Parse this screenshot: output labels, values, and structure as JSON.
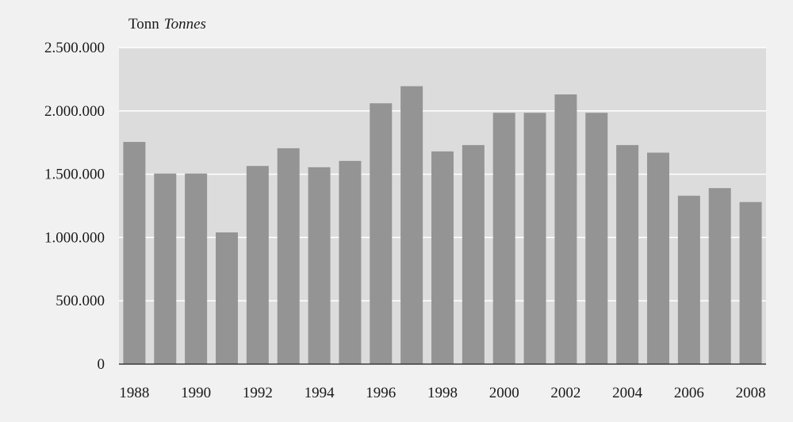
{
  "chart_data": {
    "type": "bar",
    "unit_label": "Tonn",
    "unit_label_en": "Tonnes",
    "categories": [
      "1988",
      "1989",
      "1990",
      "1991",
      "1992",
      "1993",
      "1994",
      "1995",
      "1996",
      "1997",
      "1998",
      "1999",
      "2000",
      "2001",
      "2002",
      "2003",
      "2004",
      "2005",
      "2006",
      "2007",
      "2008"
    ],
    "values": [
      1755000,
      1505000,
      1505000,
      1040000,
      1565000,
      1705000,
      1555000,
      1605000,
      2060000,
      2195000,
      1680000,
      1730000,
      1985000,
      1985000,
      2130000,
      1985000,
      1730000,
      1670000,
      1330000,
      1390000,
      1280000
    ],
    "x_tick_labels": [
      "1988",
      "1990",
      "1992",
      "1994",
      "1996",
      "1998",
      "2000",
      "2002",
      "2004",
      "2006",
      "2008"
    ],
    "y_ticks": [
      {
        "value": 0,
        "label": "0"
      },
      {
        "value": 500000,
        "label": "500.000"
      },
      {
        "value": 1000000,
        "label": "1.000.000"
      },
      {
        "value": 1500000,
        "label": "1.500.000"
      },
      {
        "value": 2000000,
        "label": "2.000.000"
      },
      {
        "value": 2500000,
        "label": "2.500.000"
      }
    ],
    "ylim": [
      0,
      2500000
    ],
    "grid": true,
    "colors": {
      "plot_background": "#dcdcdc",
      "page_background": "#f0f1f0",
      "bar": "#949494",
      "grid": "#ffffff",
      "axis": "#3a3a3a"
    }
  }
}
